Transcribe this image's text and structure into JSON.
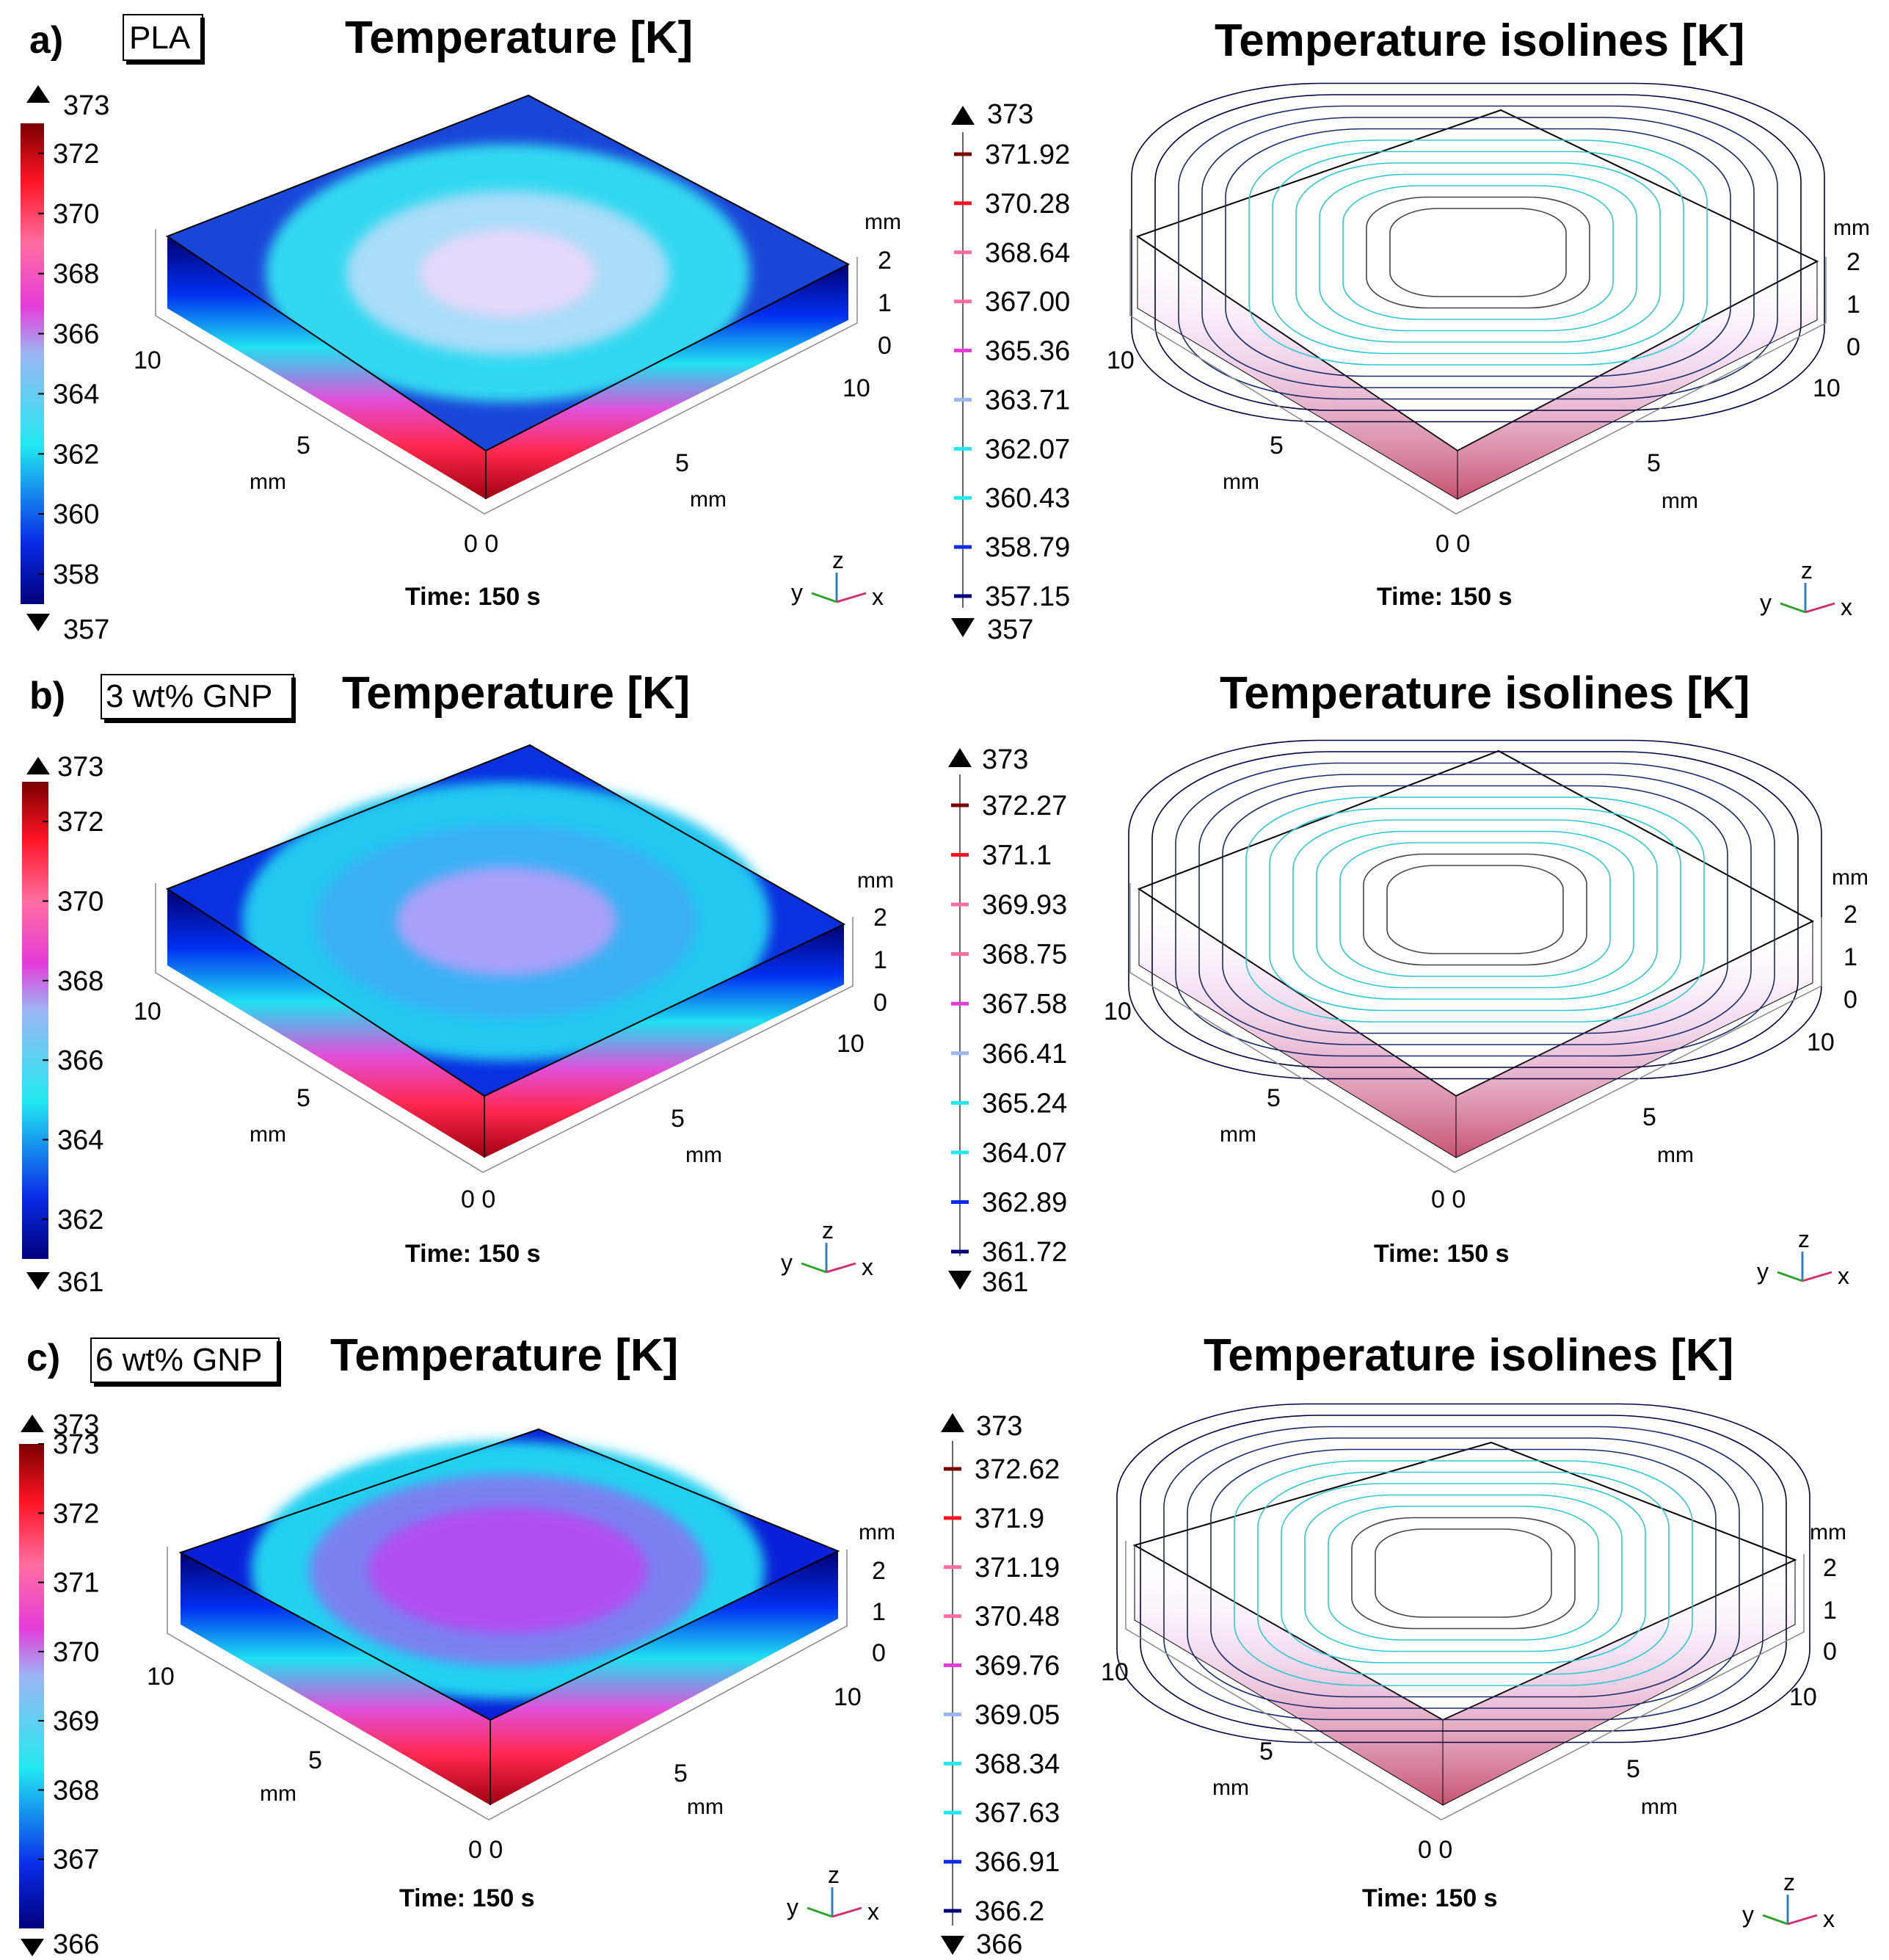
{
  "common": {
    "temperature_title": "Temperature [K]",
    "isolines_title": "Temperature isolines [K]",
    "time_label": "Time: 150 s",
    "axis_unit": "mm",
    "tick_ten": "10",
    "tick_five": "5",
    "tick_origin": "0 0",
    "z_ticks": [
      "0",
      "1",
      "2"
    ],
    "triad": {
      "y": "y",
      "z": "z",
      "x": "x"
    }
  },
  "colors": {
    "cold": "#00007a",
    "blue": "#0a2ce8",
    "cyan": "#22e8f0",
    "lavender": "#bca4f4",
    "magenta": "#e43cd8",
    "pink": "#ff6ea0",
    "red": "#ff1424",
    "hot": "#7a0000"
  },
  "panels": [
    {
      "label": "a)",
      "material": "PLA",
      "colorbar": {
        "max": "373",
        "min": "357",
        "range": [
          357,
          373
        ],
        "ticks": [
          "358",
          "360",
          "362",
          "364",
          "366",
          "368",
          "370",
          "372"
        ]
      },
      "isolines_legend": {
        "max": "373",
        "min": "357",
        "levels": [
          "371.92",
          "370.28",
          "368.64",
          "367.00",
          "365.36",
          "363.71",
          "362.07",
          "360.43",
          "358.79",
          "357.15"
        ]
      },
      "top_center_color": "#e4d8fa"
    },
    {
      "label": "b)",
      "material": "3 wt% GNP",
      "colorbar": {
        "max": "373",
        "min": "361",
        "range": [
          361,
          373
        ],
        "ticks": [
          "362",
          "364",
          "366",
          "368",
          "370",
          "372"
        ]
      },
      "isolines_legend": {
        "max": "373",
        "min": "361",
        "levels": [
          "372.27",
          "371.1",
          "369.93",
          "368.75",
          "367.58",
          "366.41",
          "365.24",
          "364.07",
          "362.89",
          "361.72"
        ]
      },
      "top_center_color": "#a8a0f8"
    },
    {
      "label": "c)",
      "material": "6 wt% GNP",
      "colorbar": {
        "max": "373",
        "min": "366",
        "range": [
          366,
          373
        ],
        "ticks": [
          "367",
          "368",
          "369",
          "370",
          "371",
          "372",
          "373"
        ]
      },
      "isolines_legend": {
        "max": "373",
        "min": "366",
        "levels": [
          "372.62",
          "371.9",
          "371.19",
          "370.48",
          "369.76",
          "369.05",
          "368.34",
          "367.63",
          "366.91",
          "366.2"
        ]
      },
      "top_center_color": "#b050f0"
    }
  ]
}
